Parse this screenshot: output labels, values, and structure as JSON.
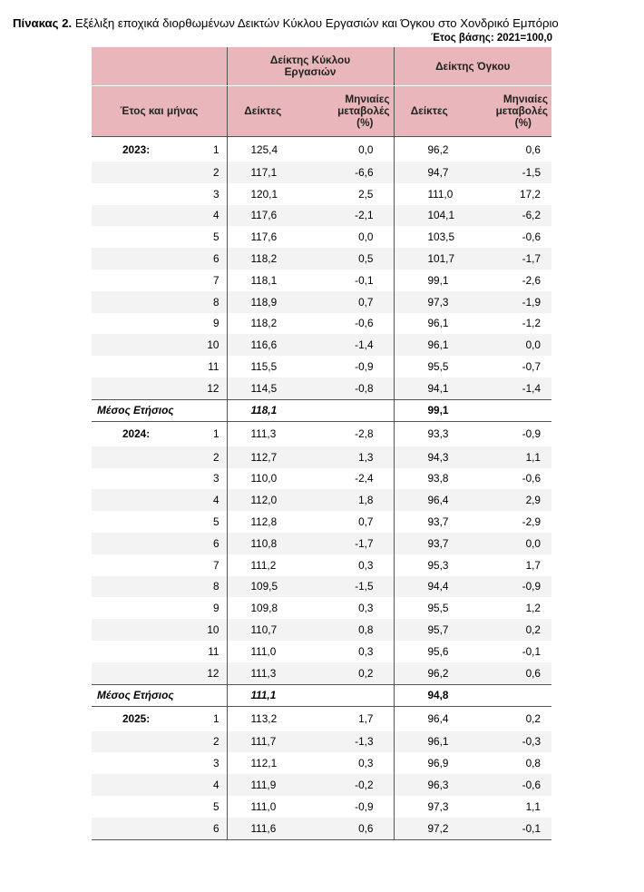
{
  "title": {
    "prefix": "Πίνακας 2.",
    "text": " Εξέλιξη εποχικά διορθωμένων Δεικτών Κύκλου Εργασιών και Όγκου στο Χονδρικό Εμπόριο"
  },
  "base_year": "Έτος βάσης: 2021=100,0",
  "header": {
    "group_turnover": "Δείκτης Κύκλου Εργασιών",
    "group_volume": "Δείκτης Όγκου",
    "col_year_month": "Έτος και μήνας",
    "col_index": "Δείκτες",
    "col_change_l1": "Μηνιαίες",
    "col_change_l2": "μεταβολές",
    "col_change_l3": "(%)"
  },
  "years": [
    {
      "year": "2023:",
      "rows": [
        {
          "m": "1",
          "t": "125,4",
          "tc": "0,0",
          "v": "96,2",
          "vc": "0,6"
        },
        {
          "m": "2",
          "t": "117,1",
          "tc": "-6,6",
          "v": "94,7",
          "vc": "-1,5"
        },
        {
          "m": "3",
          "t": "120,1",
          "tc": "2,5",
          "v": "111,0",
          "vc": "17,2"
        },
        {
          "m": "4",
          "t": "117,6",
          "tc": "-2,1",
          "v": "104,1",
          "vc": "-6,2"
        },
        {
          "m": "5",
          "t": "117,6",
          "tc": "0,0",
          "v": "103,5",
          "vc": "-0,6"
        },
        {
          "m": "6",
          "t": "118,2",
          "tc": "0,5",
          "v": "101,7",
          "vc": "-1,7"
        },
        {
          "m": "7",
          "t": "118,1",
          "tc": "-0,1",
          "v": "99,1",
          "vc": "-2,6"
        },
        {
          "m": "8",
          "t": "118,9",
          "tc": "0,7",
          "v": "97,3",
          "vc": "-1,9"
        },
        {
          "m": "9",
          "t": "118,2",
          "tc": "-0,6",
          "v": "96,1",
          "vc": "-1,2"
        },
        {
          "m": "10",
          "t": "116,6",
          "tc": "-1,4",
          "v": "96,1",
          "vc": "0,0"
        },
        {
          "m": "11",
          "t": "115,5",
          "tc": "-0,9",
          "v": "95,5",
          "vc": "-0,7"
        },
        {
          "m": "12",
          "t": "114,5",
          "tc": "-0,8",
          "v": "94,1",
          "vc": "-1,4"
        }
      ],
      "avg": {
        "label": "Μέσος Ετήσιος",
        "t": "118,1",
        "v": "99,1"
      }
    },
    {
      "year": "2024:",
      "rows": [
        {
          "m": "1",
          "t": "111,3",
          "tc": "-2,8",
          "v": "93,3",
          "vc": "-0,9"
        },
        {
          "m": "2",
          "t": "112,7",
          "tc": "1,3",
          "v": "94,3",
          "vc": "1,1"
        },
        {
          "m": "3",
          "t": "110,0",
          "tc": "-2,4",
          "v": "93,8",
          "vc": "-0,6"
        },
        {
          "m": "4",
          "t": "112,0",
          "tc": "1,8",
          "v": "96,4",
          "vc": "2,9"
        },
        {
          "m": "5",
          "t": "112,8",
          "tc": "0,7",
          "v": "93,7",
          "vc": "-2,9"
        },
        {
          "m": "6",
          "t": "110,8",
          "tc": "-1,7",
          "v": "93,7",
          "vc": "0,0"
        },
        {
          "m": "7",
          "t": "111,2",
          "tc": "0,3",
          "v": "95,3",
          "vc": "1,7"
        },
        {
          "m": "8",
          "t": "109,5",
          "tc": "-1,5",
          "v": "94,4",
          "vc": "-0,9"
        },
        {
          "m": "9",
          "t": "109,8",
          "tc": "0,3",
          "v": "95,5",
          "vc": "1,2"
        },
        {
          "m": "10",
          "t": "110,7",
          "tc": "0,8",
          "v": "95,7",
          "vc": "0,2"
        },
        {
          "m": "11",
          "t": "111,0",
          "tc": "0,3",
          "v": "95,6",
          "vc": "-0,1"
        },
        {
          "m": "12",
          "t": "111,3",
          "tc": "0,2",
          "v": "96,2",
          "vc": "0,6"
        }
      ],
      "avg": {
        "label": "Μέσος Ετήσιος",
        "t": "111,1",
        "v": "94,8"
      }
    },
    {
      "year": "2025:",
      "rows": [
        {
          "m": "1",
          "t": "113,2",
          "tc": "1,7",
          "v": "96,4",
          "vc": "0,2"
        },
        {
          "m": "2",
          "t": "111,7",
          "tc": "-1,3",
          "v": "96,1",
          "vc": "-0,3"
        },
        {
          "m": "3",
          "t": "112,1",
          "tc": "0,3",
          "v": "96,9",
          "vc": "0,8"
        },
        {
          "m": "4",
          "t": "111,9",
          "tc": "-0,2",
          "v": "96,3",
          "vc": "-0,6"
        },
        {
          "m": "5",
          "t": "111,0",
          "tc": "-0,9",
          "v": "97,3",
          "vc": "1,1"
        },
        {
          "m": "6",
          "t": "111,6",
          "tc": "0,6",
          "v": "97,2",
          "vc": "-0,1"
        }
      ]
    }
  ]
}
